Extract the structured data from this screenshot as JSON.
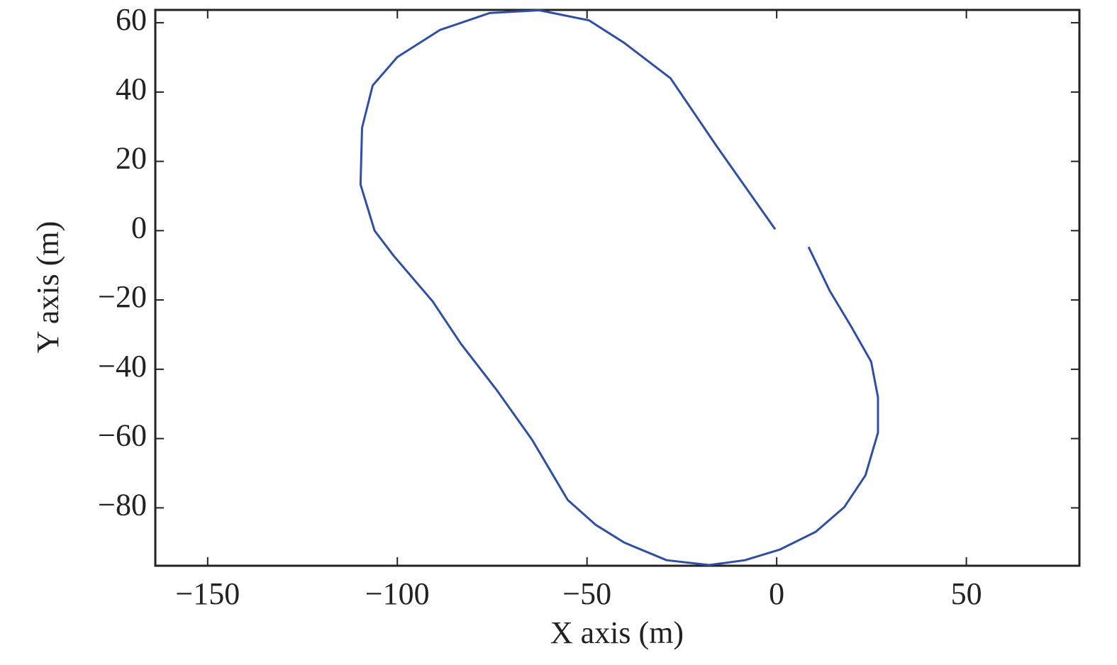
{
  "chart_data": {
    "type": "line",
    "xlabel": "X axis (m)",
    "ylabel": "Y axis (m)",
    "color": "#2e4fa3",
    "x": [
      -0.4,
      -15.9,
      -28,
      -40.2,
      -49.5,
      -62.6,
      -75.7,
      -88.8,
      -100,
      -106.5,
      -109.3,
      -109.7,
      -106,
      -101,
      -90.7,
      -83.2,
      -73.8,
      -64.5,
      -55.1,
      -47.7,
      -40.2,
      -29,
      -17.8,
      -8.4,
      0.9,
      10.3,
      17.8,
      23.4,
      26.7,
      26.7,
      24.9,
      19.6,
      14,
      8.4
    ],
    "values": [
      0.4,
      24.5,
      44,
      54.2,
      60.7,
      63.6,
      62.8,
      57.9,
      50.1,
      41.9,
      29.7,
      13.3,
      0,
      -7.2,
      -20.4,
      -32.7,
      -46,
      -60.3,
      -77.7,
      -84.9,
      -90,
      -95.1,
      -96.5,
      -95.1,
      -92,
      -86.9,
      -79.8,
      -70.6,
      -58.3,
      -48.1,
      -37.8,
      -27.6,
      -17.4,
      -4.7
    ],
    "xlim": [
      -163.8,
      79.8
    ],
    "ylim": [
      -96.7,
      63.7
    ],
    "xticks": [
      {
        "value": -150,
        "label": "−150"
      },
      {
        "value": -100,
        "label": "−100"
      },
      {
        "value": -50,
        "label": "−50"
      },
      0,
      50
    ],
    "yticks": [
      60,
      40,
      20,
      0,
      {
        "value": -20,
        "label": "−20"
      },
      {
        "value": -40,
        "label": "−40"
      },
      {
        "value": -60,
        "label": "−60"
      },
      {
        "value": -80,
        "label": "−80"
      }
    ],
    "grid": false
  }
}
